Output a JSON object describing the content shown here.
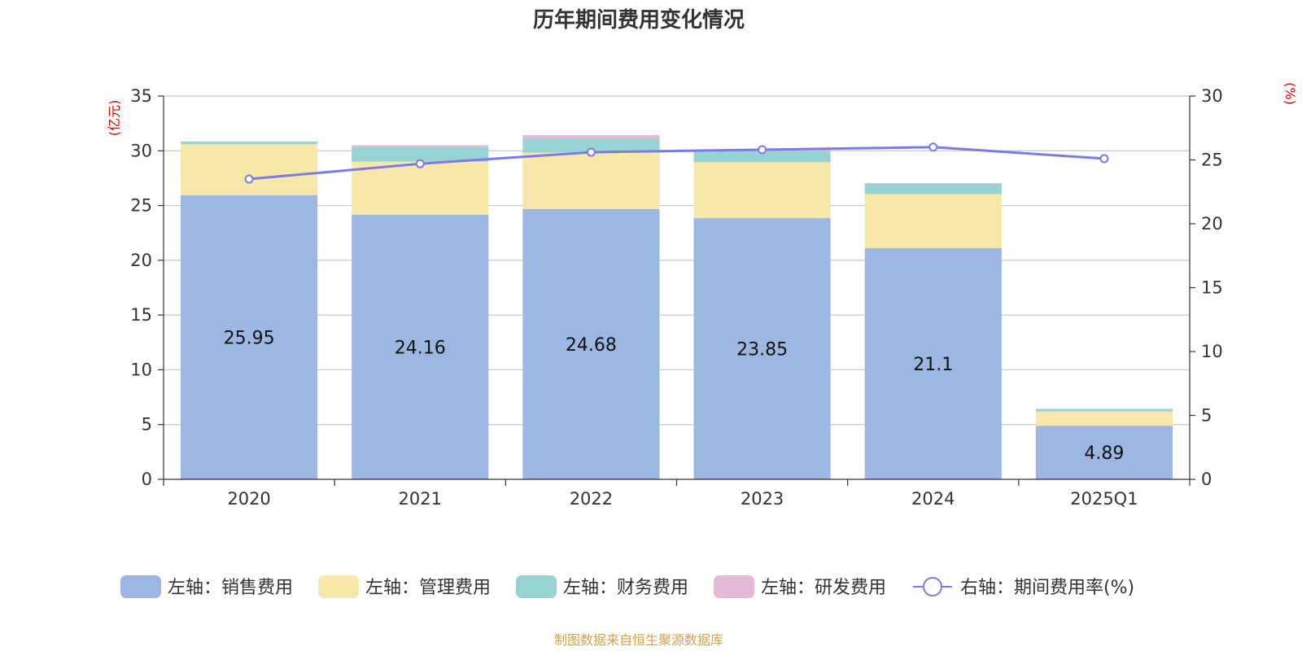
{
  "chart_data": {
    "type": "bar",
    "title": "历年期间费用变化情况",
    "categories": [
      "2020",
      "2021",
      "2022",
      "2023",
      "2024",
      "2025Q1"
    ],
    "left_axis": {
      "unit": "(亿元)",
      "ylim": [
        0,
        35
      ],
      "ticks": [
        0,
        5,
        10,
        15,
        20,
        25,
        30,
        35
      ]
    },
    "right_axis": {
      "unit": "(%)",
      "ylim": [
        0,
        30
      ],
      "ticks": [
        0,
        5,
        10,
        15,
        20,
        25,
        30
      ]
    },
    "series": [
      {
        "name": "左轴：销售费用",
        "axis": "left",
        "type": "bar",
        "color": "#9bb7e2",
        "values": [
          25.95,
          24.16,
          24.68,
          23.85,
          21.1,
          4.89
        ],
        "show_labels": true
      },
      {
        "name": "左轴：管理费用",
        "axis": "left",
        "type": "bar",
        "color": "#f7e7a9",
        "values": [
          4.65,
          4.85,
          5.15,
          5.1,
          4.95,
          1.3
        ]
      },
      {
        "name": "左轴：财务费用",
        "axis": "left",
        "type": "bar",
        "color": "#98d3d3",
        "values": [
          0.25,
          1.35,
          1.3,
          1.05,
          0.95,
          0.25
        ]
      },
      {
        "name": "左轴：研发费用",
        "axis": "left",
        "type": "bar",
        "color": "#e6b8d8",
        "values": [
          0.0,
          0.15,
          0.3,
          0.1,
          0.05,
          0.0
        ]
      },
      {
        "name": "右轴：期间费用率(%)",
        "axis": "right",
        "type": "line",
        "color": "#7b7be8",
        "values": [
          23.5,
          24.7,
          25.6,
          25.8,
          26.0,
          25.1
        ]
      }
    ],
    "grid": true,
    "legend_position": "bottom",
    "source_note": "制图数据来自恒生聚源数据库"
  }
}
